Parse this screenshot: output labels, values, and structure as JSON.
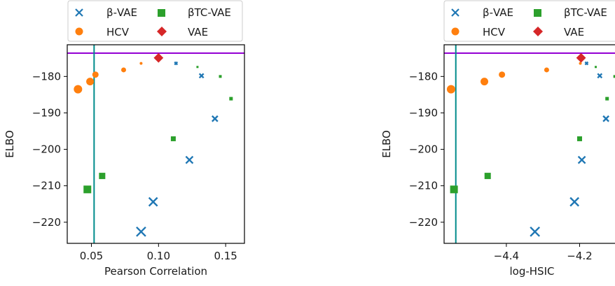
{
  "legend_entries": [
    {
      "label": "β-VAE",
      "marker": "x",
      "color": "#1f77b4"
    },
    {
      "label": "βTC-VAE",
      "marker": "square",
      "color": "#2ca02c"
    },
    {
      "label": "HCV",
      "marker": "circle",
      "color": "#ff7f0e"
    },
    {
      "label": "VAE",
      "marker": "diamond",
      "color": "#d62728"
    }
  ],
  "colors": {
    "beta_vae": "#1f77b4",
    "beta_tc_vae": "#2ca02c",
    "hcv": "#ff7f0e",
    "vae": "#d62728",
    "hline": "#9400d3",
    "vline": "#008b8b"
  },
  "chart_data": [
    {
      "type": "scatter",
      "xlabel": "Pearson Correlation",
      "ylabel": "ELBO",
      "xlim": [
        0.032,
        0.164
      ],
      "ylim": [
        -225.8,
        -171.3
      ],
      "xticks": [
        0.05,
        0.1,
        0.15
      ],
      "xtick_labels": [
        "0.05",
        "0.10",
        "0.15"
      ],
      "yticks": [
        -180,
        -190,
        -200,
        -210,
        -220
      ],
      "ytick_labels": [
        "−180",
        "−190",
        "−200",
        "−210",
        "−220"
      ],
      "legend": "top, outside plot",
      "grid": false,
      "hline": -173.6,
      "vline": 0.052,
      "series": [
        {
          "name": "β-VAE",
          "marker": "x",
          "x": [
            0.113,
            0.132,
            0.142,
            0.123,
            0.096,
            0.087
          ],
          "y": [
            -176.4,
            -179.8,
            -191.6,
            -202.9,
            -214.4,
            -222.6
          ],
          "sizes": [
            4,
            6,
            8,
            10,
            12,
            13
          ]
        },
        {
          "name": "βTC-VAE",
          "marker": "square",
          "x": [
            0.129,
            0.146,
            0.154,
            0.111,
            0.058,
            0.047
          ],
          "y": [
            -177.4,
            -180.0,
            -186.1,
            -197.1,
            -207.3,
            -211.0
          ],
          "sizes": [
            3,
            4,
            5,
            7,
            9,
            11
          ]
        },
        {
          "name": "HCV",
          "marker": "circle",
          "x": [
            0.087,
            0.074,
            0.053,
            0.049,
            0.04
          ],
          "y": [
            -176.4,
            -178.2,
            -179.5,
            -181.4,
            -183.5
          ],
          "sizes": [
            4,
            7,
            9,
            11,
            12
          ]
        },
        {
          "name": "VAE",
          "marker": "diamond",
          "x": [
            0.1
          ],
          "y": [
            -174.9
          ],
          "sizes": [
            12
          ]
        }
      ]
    },
    {
      "type": "scatter",
      "xlabel": "log-HSIC",
      "ylabel": "ELBO",
      "xlim": [
        -4.57,
        -4.09
      ],
      "ylim": [
        -225.8,
        -171.3
      ],
      "xticks": [
        -4.4,
        -4.2
      ],
      "xtick_labels": [
        "−4.4",
        "−4.2"
      ],
      "yticks": [
        -180,
        -190,
        -200,
        -210,
        -220
      ],
      "ytick_labels": [
        "−180",
        "−190",
        "−200",
        "−210",
        "−220"
      ],
      "legend": "top, outside plot",
      "grid": false,
      "hline": -173.6,
      "vline": -4.538,
      "series": [
        {
          "name": "β-VAE",
          "marker": "x",
          "x": [
            -4.181,
            -4.145,
            -4.128,
            -4.194,
            -4.214,
            -4.322
          ],
          "y": [
            -176.4,
            -179.8,
            -191.6,
            -202.9,
            -214.4,
            -222.6
          ],
          "sizes": [
            4,
            6,
            8,
            10,
            12,
            13
          ]
        },
        {
          "name": "βTC-VAE",
          "marker": "square",
          "x": [
            -4.156,
            -4.104,
            -4.125,
            -4.2,
            -4.451,
            -4.543
          ],
          "y": [
            -177.4,
            -180.0,
            -186.1,
            -197.1,
            -207.3,
            -211.0
          ],
          "sizes": [
            3,
            4,
            5,
            7,
            9,
            11
          ]
        },
        {
          "name": "HCV",
          "marker": "circle",
          "x": [
            -4.198,
            -4.29,
            -4.412,
            -4.46,
            -4.551
          ],
          "y": [
            -176.4,
            -178.2,
            -179.5,
            -181.4,
            -183.5
          ],
          "sizes": [
            4,
            7,
            9,
            11,
            12
          ]
        },
        {
          "name": "VAE",
          "marker": "diamond",
          "x": [
            -4.196
          ],
          "y": [
            -174.9
          ],
          "sizes": [
            12
          ]
        }
      ]
    }
  ]
}
